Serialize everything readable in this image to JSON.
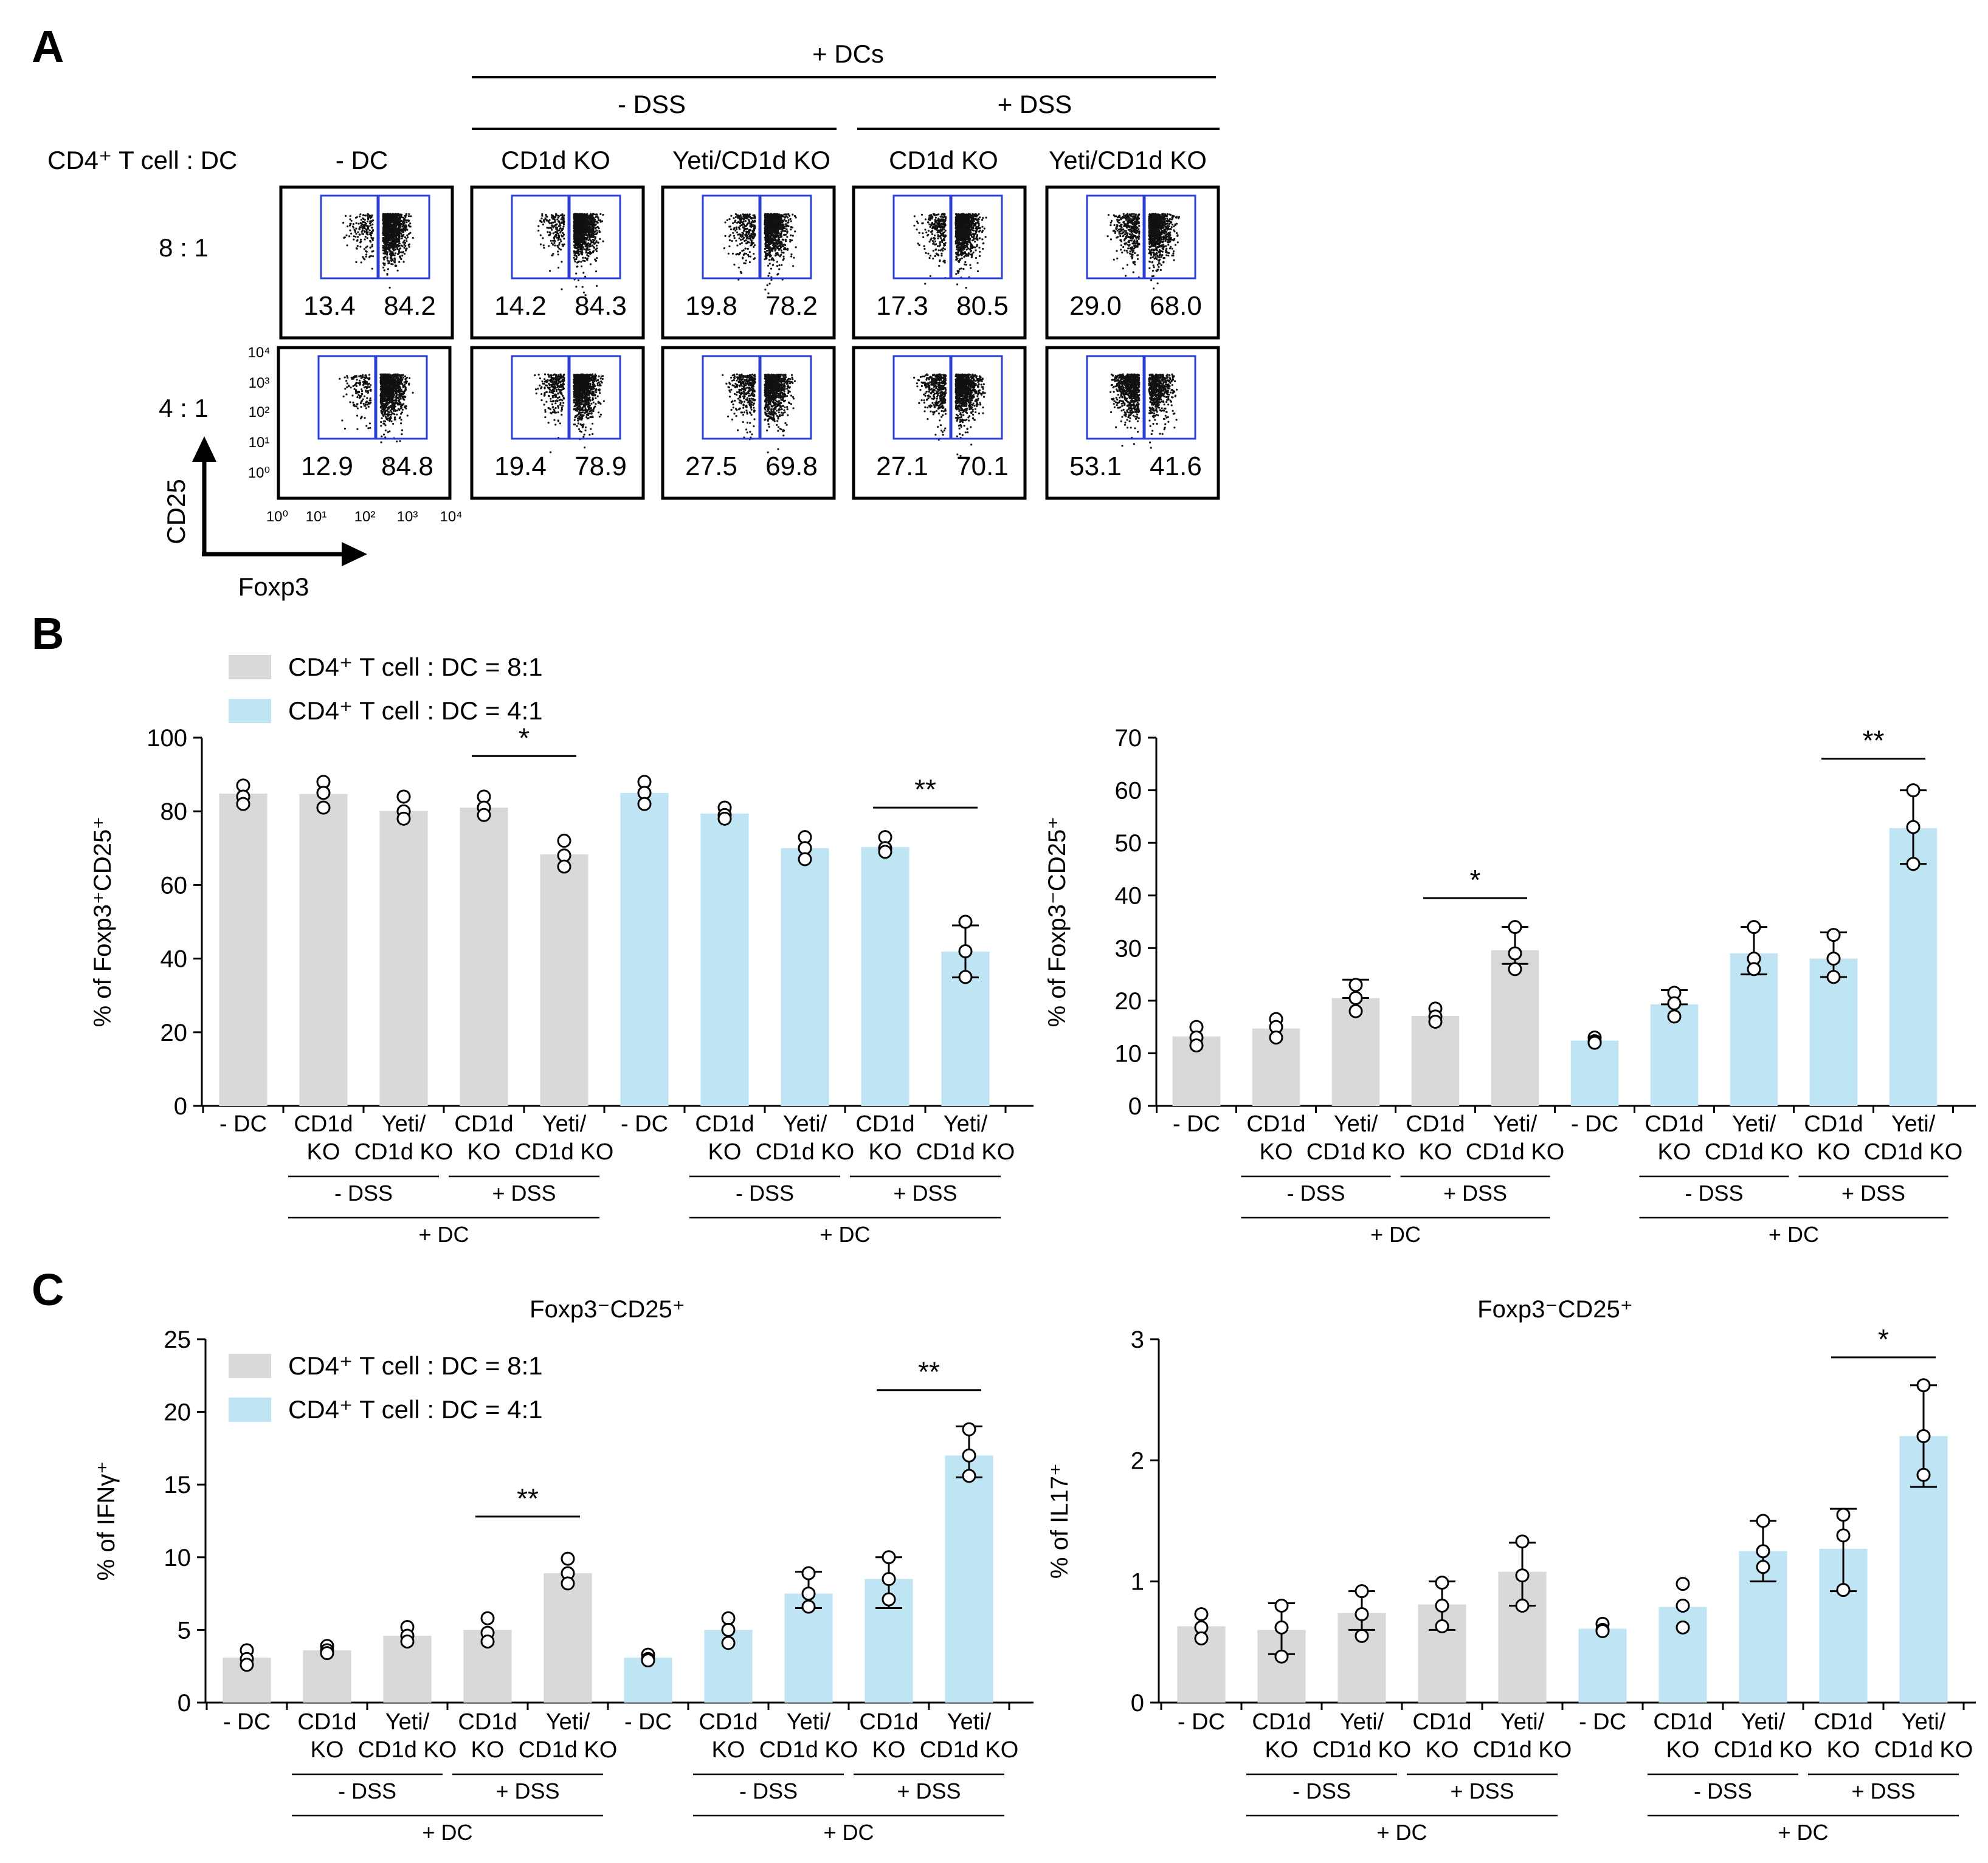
{
  "panel_labels": {
    "a": "A",
    "b": "B",
    "c": "C"
  },
  "colors": {
    "ratio_8_1": "#d9d9d9",
    "ratio_4_1": "#bfe4f4",
    "gate": "#2b3fd6"
  },
  "panel_a": {
    "top_header": "+ DCs",
    "minus_dss": "- DSS",
    "plus_dss": "+ DSS",
    "row_header": "CD4⁺ T cell : DC",
    "columns": [
      "- DC",
      "CD1d KO",
      "Yeti/CD1d KO",
      "CD1d KO",
      "Yeti/CD1d KO"
    ],
    "rows": [
      "8 : 1",
      "4 : 1"
    ],
    "values": [
      [
        [
          "13.4",
          "84.2"
        ],
        [
          "14.2",
          "84.3"
        ],
        [
          "19.8",
          "78.2"
        ],
        [
          "17.3",
          "80.5"
        ],
        [
          "29.0",
          "68.0"
        ]
      ],
      [
        [
          "12.9",
          "84.8"
        ],
        [
          "19.4",
          "78.9"
        ],
        [
          "27.5",
          "69.8"
        ],
        [
          "27.1",
          "70.1"
        ],
        [
          "53.1",
          "41.6"
        ]
      ]
    ],
    "y_ticks": [
      "10⁴",
      "10³",
      "10²",
      "10¹",
      "10⁰"
    ],
    "x_ticks": [
      "10⁰",
      "10¹",
      "10²",
      "10³",
      "10⁴"
    ],
    "y_axis_label": "CD25",
    "x_axis_label": "Foxp3"
  },
  "chart_data": [
    {
      "id": "B-left",
      "type": "bar",
      "ylabel": "% of Foxp3⁺CD25⁺",
      "title": "",
      "ylim": [
        0,
        100
      ],
      "yticks": [
        0,
        20,
        40,
        60,
        80,
        100
      ],
      "legend": [
        "CD4⁺ T cell : DC = 8:1",
        "CD4⁺ T cell : DC = 4:1"
      ],
      "categories": [
        [
          "- DC"
        ],
        [
          "CD1d",
          "KO"
        ],
        [
          "Yeti/",
          "CD1d KO"
        ],
        [
          "CD1d",
          "KO"
        ],
        [
          "Yeti/",
          "CD1d KO"
        ],
        [
          "- DC"
        ],
        [
          "CD1d",
          "KO"
        ],
        [
          "Yeti/",
          "CD1d KO"
        ],
        [
          "CD1d",
          "KO"
        ],
        [
          "Yeti/",
          "CD1d KO"
        ]
      ],
      "group": [
        0,
        0,
        0,
        0,
        0,
        1,
        1,
        1,
        1,
        1
      ],
      "values": [
        84.8,
        84.7,
        80.1,
        81.0,
        68.3,
        85.0,
        79.4,
        70.0,
        70.3,
        41.9
      ],
      "error_high": [
        null,
        null,
        null,
        null,
        null,
        null,
        null,
        null,
        null,
        49.0
      ],
      "error_low": [
        null,
        null,
        null,
        null,
        null,
        null,
        null,
        null,
        null,
        34.9
      ],
      "points": [
        [
          87,
          84,
          82
        ],
        [
          88,
          85,
          81
        ],
        [
          84,
          80,
          78
        ],
        [
          84,
          81,
          79
        ],
        [
          72,
          68,
          65
        ],
        [
          88,
          85,
          82
        ],
        [
          81,
          79,
          78
        ],
        [
          73,
          70,
          67
        ],
        [
          73,
          70,
          69
        ],
        [
          50,
          42,
          35
        ]
      ],
      "sig": [
        {
          "from": 3,
          "to": 4,
          "label": "*",
          "y": 95
        },
        {
          "from": 8,
          "to": 9,
          "label": "**",
          "y": 81
        }
      ],
      "dss_labels": [
        "- DSS",
        "+ DSS",
        "- DSS",
        "+ DSS"
      ],
      "dc_labels": [
        "+ DC",
        "+ DC"
      ]
    },
    {
      "id": "B-right",
      "type": "bar",
      "ylabel": "% of Foxp3⁻CD25⁺",
      "title": "",
      "ylim": [
        0,
        70
      ],
      "yticks": [
        0,
        10,
        20,
        30,
        40,
        50,
        60,
        70
      ],
      "categories": [
        [
          "- DC"
        ],
        [
          "CD1d",
          "KO"
        ],
        [
          "Yeti/",
          "CD1d KO"
        ],
        [
          "CD1d",
          "KO"
        ],
        [
          "Yeti/",
          "CD1d KO"
        ],
        [
          "- DC"
        ],
        [
          "CD1d",
          "KO"
        ],
        [
          "Yeti/",
          "CD1d KO"
        ],
        [
          "CD1d",
          "KO"
        ],
        [
          "Yeti/",
          "CD1d KO"
        ]
      ],
      "group": [
        0,
        0,
        0,
        0,
        0,
        1,
        1,
        1,
        1,
        1
      ],
      "values": [
        13.2,
        14.7,
        20.5,
        17.1,
        29.6,
        12.4,
        19.3,
        29.0,
        28.0,
        52.8
      ],
      "error_high": [
        null,
        null,
        24.0,
        null,
        34.0,
        null,
        22.0,
        34.0,
        33.0,
        60.0
      ],
      "error_low": [
        null,
        null,
        20.5,
        null,
        27.0,
        null,
        19.3,
        25.0,
        24.5,
        46.0
      ],
      "points": [
        [
          15,
          13,
          11.5
        ],
        [
          16.5,
          15,
          13
        ],
        [
          23,
          20.5,
          18
        ],
        [
          18.5,
          17,
          16
        ],
        [
          34,
          29,
          26
        ],
        [
          13,
          12.3,
          12
        ],
        [
          21.5,
          19.5,
          17
        ],
        [
          34,
          28,
          26
        ],
        [
          32.5,
          28,
          24.5
        ],
        [
          60,
          53,
          46
        ]
      ],
      "sig": [
        {
          "from": 3,
          "to": 4,
          "label": "*",
          "y": 39.5
        },
        {
          "from": 8,
          "to": 9,
          "label": "**",
          "y": 66
        }
      ],
      "dss_labels": [
        "- DSS",
        "+ DSS",
        "- DSS",
        "+ DSS"
      ],
      "dc_labels": [
        "+ DC",
        "+ DC"
      ]
    },
    {
      "id": "C-left",
      "type": "bar",
      "title": "Foxp3⁻CD25⁺",
      "ylabel": "% of IFNγ⁺",
      "ylim": [
        0,
        25
      ],
      "yticks": [
        0,
        5,
        10,
        15,
        20,
        25
      ],
      "legend": [
        "CD4⁺ T cell : DC = 8:1",
        "CD4⁺ T cell : DC = 4:1"
      ],
      "categories": [
        [
          "- DC"
        ],
        [
          "CD1d",
          "KO"
        ],
        [
          "Yeti/",
          "CD1d KO"
        ],
        [
          "CD1d",
          "KO"
        ],
        [
          "Yeti/",
          "CD1d KO"
        ],
        [
          "- DC"
        ],
        [
          "CD1d",
          "KO"
        ],
        [
          "Yeti/",
          "CD1d KO"
        ],
        [
          "CD1d",
          "KO"
        ],
        [
          "Yeti/",
          "CD1d KO"
        ]
      ],
      "group": [
        0,
        0,
        0,
        0,
        0,
        1,
        1,
        1,
        1,
        1
      ],
      "values": [
        3.1,
        3.6,
        4.6,
        5.0,
        8.9,
        3.1,
        5.0,
        7.5,
        8.5,
        17.0
      ],
      "error_high": [
        null,
        null,
        null,
        null,
        null,
        null,
        null,
        9.0,
        10.0,
        19.0
      ],
      "error_low": [
        null,
        null,
        null,
        null,
        null,
        null,
        null,
        6.5,
        6.5,
        15.5
      ],
      "points": [
        [
          3.6,
          3.0,
          2.6
        ],
        [
          3.9,
          3.6,
          3.4
        ],
        [
          5.2,
          4.6,
          4.2
        ],
        [
          5.8,
          4.8,
          4.2
        ],
        [
          9.9,
          8.9,
          8.2
        ],
        [
          3.3,
          3.0,
          2.9
        ],
        [
          5.8,
          5.0,
          4.1
        ],
        [
          8.9,
          7.5,
          6.6
        ],
        [
          10.0,
          8.5,
          7.1
        ],
        [
          18.8,
          17.0,
          15.6
        ]
      ],
      "sig": [
        {
          "from": 3,
          "to": 4,
          "label": "**",
          "y": 12.8
        },
        {
          "from": 8,
          "to": 9,
          "label": "**",
          "y": 21.5
        }
      ],
      "dss_labels": [
        "- DSS",
        "+ DSS",
        "- DSS",
        "+ DSS"
      ],
      "dc_labels": [
        "+ DC",
        "+ DC"
      ]
    },
    {
      "id": "C-right",
      "type": "bar",
      "title": "Foxp3⁻CD25⁺",
      "ylabel": "% of IL17⁺",
      "ylim": [
        0,
        3
      ],
      "yticks": [
        0,
        1,
        2,
        3
      ],
      "categories": [
        [
          "- DC"
        ],
        [
          "CD1d",
          "KO"
        ],
        [
          "Yeti/",
          "CD1d KO"
        ],
        [
          "CD1d",
          "KO"
        ],
        [
          "Yeti/",
          "CD1d KO"
        ],
        [
          "- DC"
        ],
        [
          "CD1d",
          "KO"
        ],
        [
          "Yeti/",
          "CD1d KO"
        ],
        [
          "CD1d",
          "KO"
        ],
        [
          "Yeti/",
          "CD1d KO"
        ]
      ],
      "group": [
        0,
        0,
        0,
        0,
        0,
        1,
        1,
        1,
        1,
        1
      ],
      "values": [
        0.63,
        0.6,
        0.74,
        0.81,
        1.08,
        0.61,
        0.79,
        1.25,
        1.27,
        2.2
      ],
      "error_high": [
        null,
        0.82,
        0.92,
        1.0,
        1.32,
        null,
        null,
        1.5,
        1.6,
        2.62
      ],
      "error_low": [
        null,
        0.4,
        0.6,
        0.6,
        0.8,
        null,
        null,
        1.0,
        0.92,
        1.78
      ],
      "points": [
        [
          0.73,
          0.62,
          0.53
        ],
        [
          0.8,
          0.62,
          0.38
        ],
        [
          0.92,
          0.73,
          0.55
        ],
        [
          0.99,
          0.8,
          0.63
        ],
        [
          1.33,
          1.05,
          0.8
        ],
        [
          0.65,
          0.6,
          0.59
        ],
        [
          0.98,
          0.8,
          0.62
        ],
        [
          1.5,
          1.25,
          1.12
        ],
        [
          1.55,
          1.38,
          0.93
        ],
        [
          2.62,
          2.2,
          1.88
        ]
      ],
      "sig": [
        {
          "from": 8,
          "to": 9,
          "label": "*",
          "y": 2.85
        }
      ],
      "dss_labels": [
        "- DSS",
        "+ DSS",
        "- DSS",
        "+ DSS"
      ],
      "dc_labels": [
        "+ DC",
        "+ DC"
      ]
    }
  ]
}
